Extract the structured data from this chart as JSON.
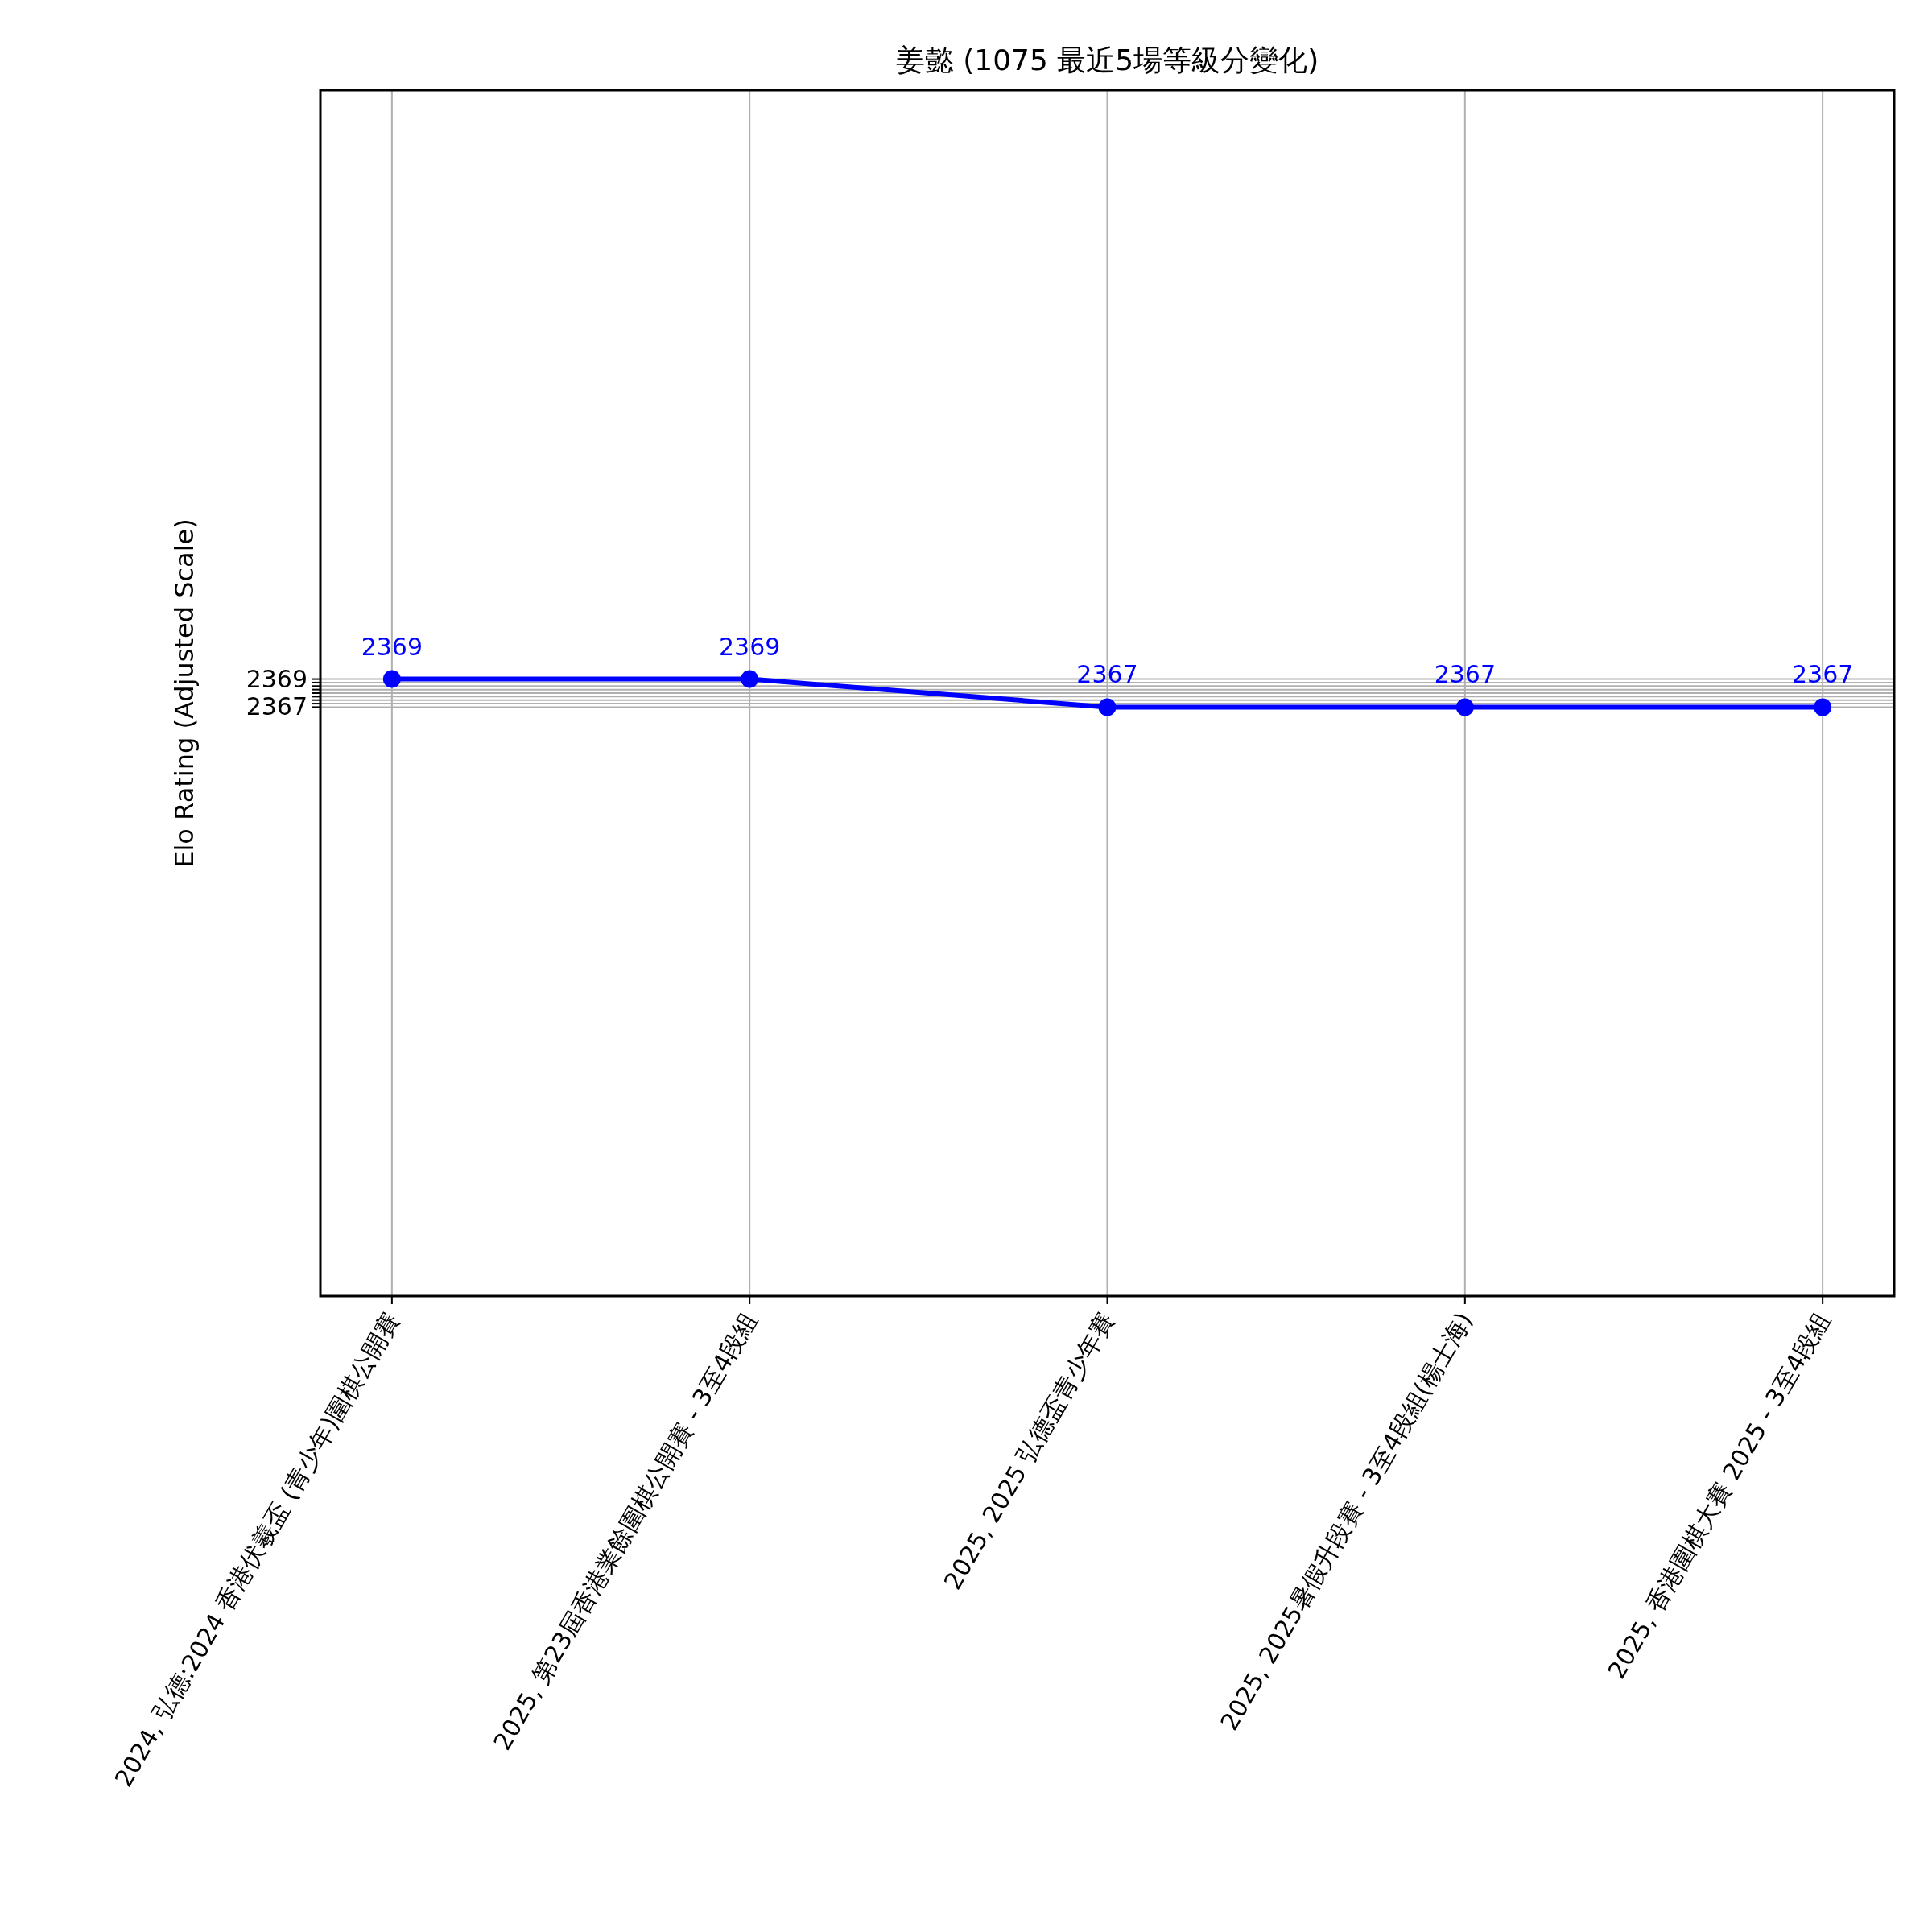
{
  "chart_data": {
    "type": "line",
    "title": "姜懿 (1075 最近5場等級分變化)",
    "ylabel": "Elo Rating (Adjusted Scale)",
    "categories": [
      "2024, 弘德:2024 香港伏羲盃 (青少年)圍棋公開賽",
      "2025, 第23屆香港業餘圍棋公開賽 - 3至4段組",
      "2025, 2025 弘德盃青少年賽",
      "2025, 2025暑假升段賽 - 3至4段組(楊士海)",
      "2025, 香港圍棋大賽 2025 - 3至4段組"
    ],
    "series": [
      {
        "color": "#0000ff",
        "values": [
          2369,
          2369,
          2367,
          2367,
          2367
        ],
        "value_labels": [
          "2369",
          "2369",
          "2367",
          "2367",
          "2367"
        ]
      }
    ],
    "ylim": [
      2325,
      2411
    ],
    "yticks": [
      2367,
      {
        "value": 2367.25,
        "label": null
      },
      {
        "value": 2367.5,
        "label": null
      },
      {
        "value": 2367.75,
        "label": null
      },
      {
        "value": 2368,
        "label": null
      },
      {
        "value": 2368.25,
        "label": null
      },
      {
        "value": 2368.5,
        "label": null
      },
      {
        "value": 2368.75,
        "label": null
      },
      2369
    ],
    "grid": true,
    "marker": "circle",
    "line_style": "solid"
  }
}
